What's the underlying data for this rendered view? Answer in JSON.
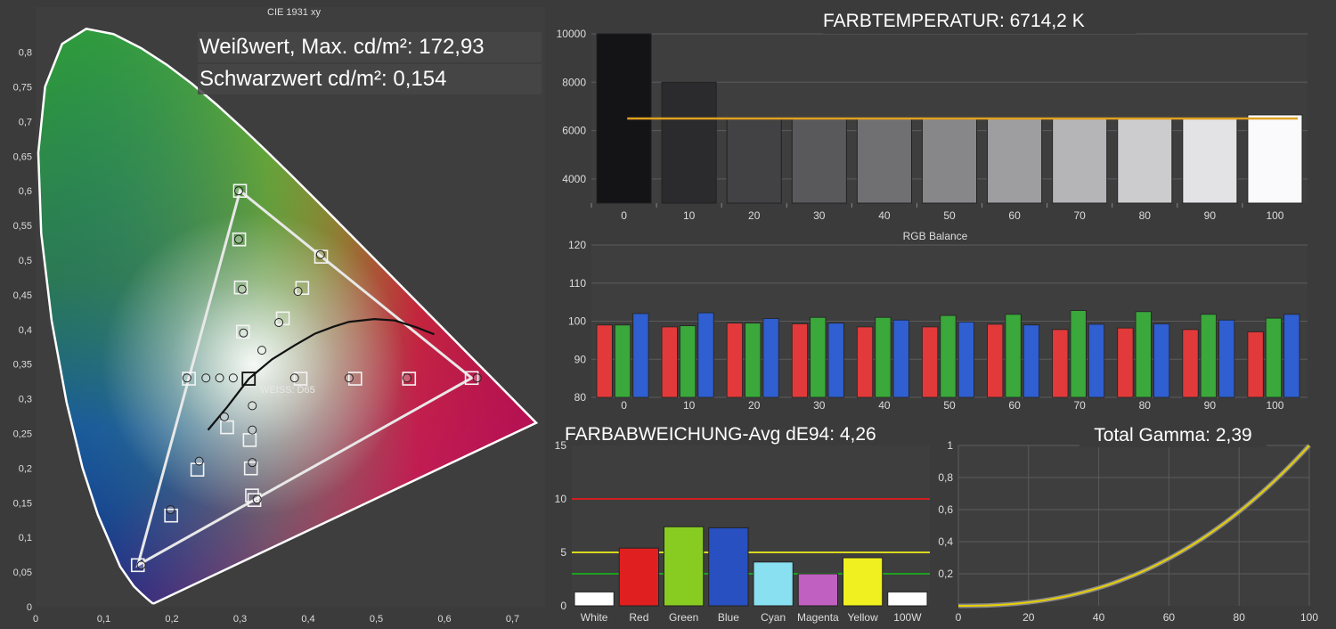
{
  "colors": {
    "background": "#3b3b3b",
    "panel_bg": "#3e3e3e",
    "grid": "#5c5c5c",
    "axis_text": "#dddddd",
    "title_text": "#ffffff",
    "title_box": "#4a4a4a",
    "red": "#e23a3a",
    "green": "#3aa83a",
    "blue": "#2f5fd0",
    "yellow_line": "#e8d000",
    "orange_line": "#e0a020",
    "limit_red": "#d02020",
    "limit_yellow": "#d8d820",
    "limit_green": "#20a020"
  },
  "cie": {
    "title": "CIE 1931 xy",
    "white_text": "Weißwert, Max. cd/m²: 172,93",
    "black_text": "Schwarzwert cd/m²: 0,154",
    "white_label": "WEISS: D65"
  },
  "chart_data": [
    {
      "id": "cie",
      "type": "scatter",
      "title": "CIE 1931 xy",
      "xlim": [
        0,
        0.75
      ],
      "ylim": [
        0,
        0.85
      ],
      "x_ticks": [
        "0",
        "0,1",
        "0,2",
        "0,3",
        "0,4",
        "0,5",
        "0,6",
        "0,7"
      ],
      "y_ticks": [
        "0",
        "0,05",
        "0,1",
        "0,15",
        "0,2",
        "0,25",
        "0,3",
        "0,35",
        "0,4",
        "0,45",
        "0,5",
        "0,55",
        "0,6",
        "0,65",
        "0,7",
        "0,75",
        "0,8"
      ],
      "locus": [
        [
          0.1741,
          0.005
        ],
        [
          0.1738,
          0.0049
        ],
        [
          0.1714,
          0.0051
        ],
        [
          0.1644,
          0.0109
        ],
        [
          0.1566,
          0.0177
        ],
        [
          0.144,
          0.0297
        ],
        [
          0.1241,
          0.0578
        ],
        [
          0.0913,
          0.1327
        ],
        [
          0.0687,
          0.2007
        ],
        [
          0.0454,
          0.295
        ],
        [
          0.0235,
          0.4127
        ],
        [
          0.0082,
          0.5384
        ],
        [
          0.0039,
          0.6548
        ],
        [
          0.0139,
          0.7502
        ],
        [
          0.0389,
          0.812
        ],
        [
          0.0743,
          0.8338
        ],
        [
          0.1142,
          0.8262
        ],
        [
          0.1547,
          0.8059
        ],
        [
          0.1929,
          0.7816
        ],
        [
          0.2296,
          0.7543
        ],
        [
          0.2658,
          0.7243
        ],
        [
          0.3016,
          0.6923
        ],
        [
          0.3373,
          0.6589
        ],
        [
          0.3731,
          0.6245
        ],
        [
          0.4087,
          0.5896
        ],
        [
          0.4441,
          0.5547
        ],
        [
          0.4788,
          0.5202
        ],
        [
          0.5125,
          0.4866
        ],
        [
          0.5448,
          0.4544
        ],
        [
          0.5752,
          0.4242
        ],
        [
          0.6029,
          0.3965
        ],
        [
          0.627,
          0.3725
        ],
        [
          0.6482,
          0.3514
        ],
        [
          0.6658,
          0.334
        ],
        [
          0.6801,
          0.3197
        ],
        [
          0.6915,
          0.3083
        ],
        [
          0.7006,
          0.2993
        ],
        [
          0.7079,
          0.292
        ],
        [
          0.7347,
          0.2653
        ]
      ],
      "planck": [
        [
          0.253,
          0.255
        ],
        [
          0.281,
          0.288
        ],
        [
          0.313,
          0.329
        ],
        [
          0.347,
          0.357
        ],
        [
          0.38,
          0.377
        ],
        [
          0.41,
          0.394
        ],
        [
          0.437,
          0.404
        ],
        [
          0.46,
          0.411
        ],
        [
          0.497,
          0.415
        ],
        [
          0.527,
          0.413
        ],
        [
          0.559,
          0.403
        ],
        [
          0.585,
          0.393
        ]
      ],
      "target_gamut": [
        [
          0.64,
          0.33
        ],
        [
          0.3,
          0.6
        ],
        [
          0.15,
          0.06
        ]
      ],
      "white_point": [
        0.3127,
        0.329
      ],
      "targets": [
        [
          0.64,
          0.33
        ],
        [
          0.3,
          0.6
        ],
        [
          0.15,
          0.06
        ],
        [
          0.225,
          0.329
        ],
        [
          0.321,
          0.154
        ],
        [
          0.419,
          0.505
        ],
        [
          0.5481,
          0.329
        ],
        [
          0.469,
          0.329
        ],
        [
          0.3889,
          0.329
        ],
        [
          0.2988,
          0.5299
        ],
        [
          0.3012,
          0.4606
        ],
        [
          0.3043,
          0.3967
        ],
        [
          0.281,
          0.2589
        ],
        [
          0.2374,
          0.1977
        ],
        [
          0.1989,
          0.1315
        ],
        [
          0.3142,
          0.2405
        ],
        [
          0.3159,
          0.1996
        ],
        [
          0.3176,
          0.1605
        ],
        [
          0.3913,
          0.4599
        ],
        [
          0.3628,
          0.416
        ]
      ],
      "measured": [
        [
          0.648,
          0.33
        ],
        [
          0.298,
          0.6
        ],
        [
          0.155,
          0.06
        ],
        [
          0.222,
          0.33
        ],
        [
          0.325,
          0.155
        ],
        [
          0.418,
          0.508
        ],
        [
          0.545,
          0.33
        ],
        [
          0.46,
          0.33
        ],
        [
          0.38,
          0.33
        ],
        [
          0.298,
          0.53
        ],
        [
          0.303,
          0.458
        ],
        [
          0.305,
          0.395
        ],
        [
          0.277,
          0.274
        ],
        [
          0.24,
          0.21
        ],
        [
          0.198,
          0.14
        ],
        [
          0.318,
          0.255
        ],
        [
          0.318,
          0.208
        ],
        [
          0.318,
          0.29
        ],
        [
          0.385,
          0.455
        ],
        [
          0.357,
          0.41
        ],
        [
          0.332,
          0.37
        ],
        [
          0.25,
          0.33
        ],
        [
          0.27,
          0.33
        ],
        [
          0.29,
          0.33
        ]
      ]
    },
    {
      "id": "colortemp",
      "type": "bar",
      "title": "FARBTEMPERATUR: 6714,2 K",
      "categories": [
        "0",
        "10",
        "20",
        "30",
        "40",
        "50",
        "60",
        "70",
        "80",
        "90",
        "100"
      ],
      "values": [
        10000,
        8000,
        6500,
        6500,
        6500,
        6500,
        6500,
        6500,
        6500,
        6500,
        6650
      ],
      "target": 6500,
      "ylim": [
        3000,
        10000
      ],
      "y_ticks": [
        "4000",
        "6000",
        "8000",
        "10000"
      ]
    },
    {
      "id": "rgb",
      "type": "bar",
      "title": "RGB Balance",
      "categories": [
        "0",
        "10",
        "20",
        "30",
        "40",
        "50",
        "60",
        "70",
        "80",
        "90",
        "100"
      ],
      "series": [
        {
          "values": [
            99,
            98.5,
            99.5,
            99.3,
            98.5,
            98.5,
            99.2,
            97.8,
            98.2,
            97.8,
            97.2
          ]
        },
        {
          "values": [
            99,
            98.8,
            99.5,
            101,
            101,
            101.5,
            101.8,
            102.8,
            102.5,
            101.8,
            100.8
          ]
        },
        {
          "values": [
            102,
            102.2,
            100.7,
            99.5,
            100.3,
            99.8,
            99,
            99.2,
            99.3,
            100.3,
            101.8
          ]
        }
      ],
      "ylim": [
        80,
        120
      ],
      "y_ticks": [
        "80",
        "90",
        "100",
        "110",
        "120"
      ]
    },
    {
      "id": "deltae",
      "type": "bar",
      "title": "FARBABWEICHUNG-Avg dE94: 4,26",
      "categories": [
        "White",
        "Red",
        "Green",
        "Blue",
        "Cyan",
        "Magenta",
        "Yellow",
        "100W"
      ],
      "values": [
        1.3,
        5.4,
        7.4,
        7.3,
        4.1,
        3.0,
        4.5,
        1.3
      ],
      "bar_colors": [
        "#ffffff",
        "#e02020",
        "#88cc22",
        "#2850c0",
        "#88e0f0",
        "#c060c0",
        "#f0f020",
        "#ffffff"
      ],
      "limits": [
        10,
        5,
        3
      ],
      "ylim": [
        0,
        15
      ],
      "y_ticks": [
        "0",
        "5",
        "10",
        "15"
      ]
    },
    {
      "id": "gamma",
      "type": "line",
      "title": "Total Gamma: 2,39",
      "gamma": 2.39,
      "xlim": [
        0,
        100
      ],
      "ylim": [
        0,
        1
      ],
      "x_ticks": [
        "0",
        "20",
        "40",
        "60",
        "80",
        "100"
      ],
      "y_ticks": [
        "0,2",
        "0,4",
        "0,6",
        "0,8",
        "1"
      ]
    }
  ]
}
